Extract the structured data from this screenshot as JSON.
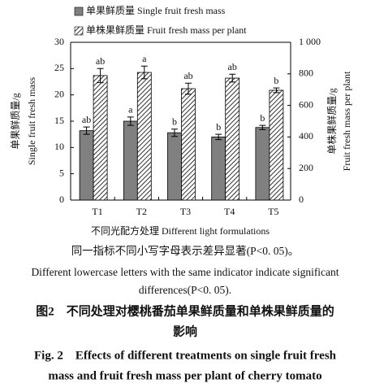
{
  "chart_data": {
    "type": "bar",
    "categories": [
      "T1",
      "T2",
      "T3",
      "T4",
      "T5"
    ],
    "series": [
      {
        "name": "单果鲜质量 Single fruit  fresh mass",
        "color": "#808080",
        "values": [
          13.2,
          15.0,
          12.8,
          12.0,
          13.8
        ],
        "errors": [
          0.7,
          0.8,
          0.7,
          0.5,
          0.4
        ],
        "letters": [
          "ab",
          "a",
          "b",
          "b",
          "b"
        ]
      },
      {
        "name": "单株果鲜质量 Fruit  fresh mass per plant",
        "color": "#ffffff",
        "hatch": true,
        "axis": "y2",
        "values": [
          789,
          809,
          706,
          773,
          696
        ],
        "errors": [
          45,
          40,
          35,
          25,
          15
        ],
        "letters": [
          "ab",
          "a",
          "ab",
          "ab",
          "b"
        ]
      }
    ],
    "ylim": [
      0,
      30
    ],
    "yticks": [
      0,
      5,
      10,
      15,
      20,
      25,
      30
    ],
    "y2lim": [
      0,
      1000
    ],
    "y2ticks": [
      0,
      200,
      400,
      600,
      800,
      {
        "value": 1000,
        "label": "1 000"
      }
    ],
    "ylabel": [
      "单果鲜质量/g",
      "Single fruit fresh mass"
    ],
    "y2label": [
      "单株果鲜质量/g",
      "Fruit fresh mass per plant"
    ],
    "xlabel": "不同光配方处理 Different light formulations"
  },
  "caption": {
    "note": "同一指标不同小写字母表示差异显著(P<0. 05)。",
    "note_en": [
      "Different lowercase letters with the same indicator indicate significant",
      "differences(P<0. 05)."
    ],
    "title_cn": [
      "图2　不同处理对樱桃番茄单果鲜质量和单株果鲜质量的",
      "影响"
    ],
    "title_en": [
      "Fig. 2　Effects of different treatments on single fruit fresh",
      "mass and fruit fresh mass per plant of cherry tomato"
    ]
  }
}
